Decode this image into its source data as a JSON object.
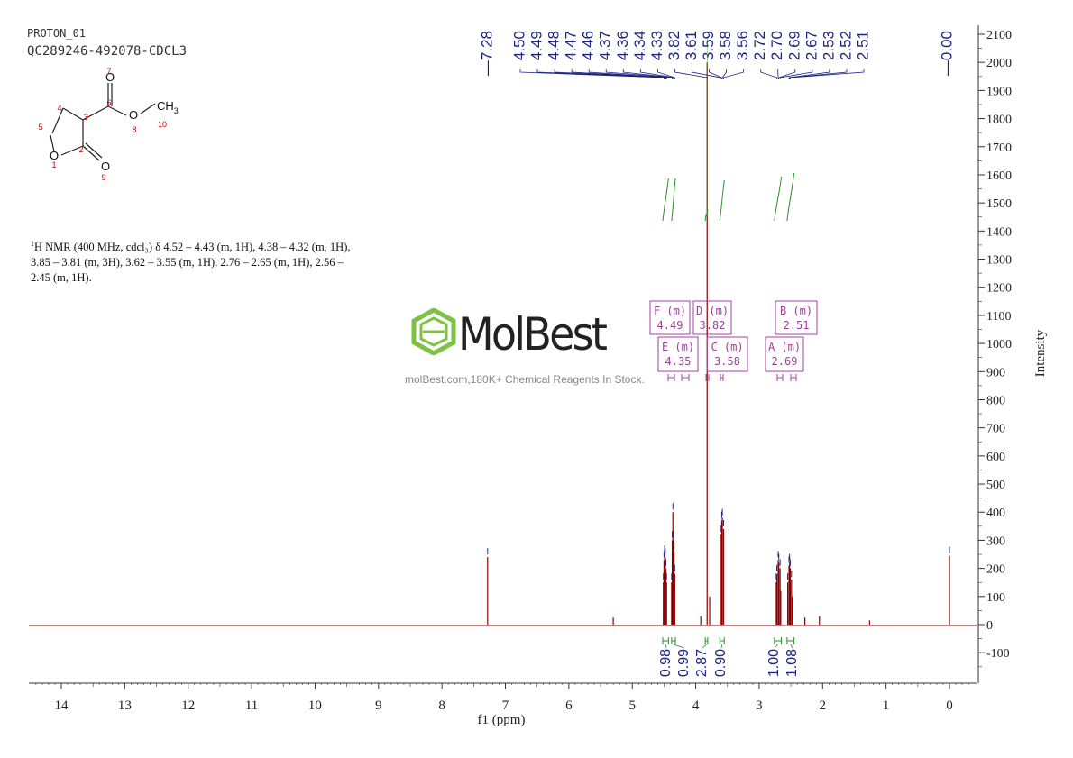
{
  "header": {
    "experiment": "PROTON_01",
    "sample": "QC289246-492078-CDCL3"
  },
  "structure": {
    "atom_labels": [
      "1",
      "2",
      "3",
      "4",
      "5",
      "6",
      "7",
      "8",
      "9",
      "10"
    ],
    "ch3_label": "CH",
    "ch3_sub": "3"
  },
  "nmr_text": {
    "sup": "1",
    "body": "H NMR (400 MHz, cdcl₃) δ 4.52 – 4.43 (m, 1H), 4.38 – 4.32 (m, 1H), 3.85 – 3.81 (m, 3H), 3.62 – 3.55 (m, 1H), 2.76 – 2.65 (m, 1H), 2.56 – 2.45 (m, 1H)."
  },
  "watermark": {
    "logo": "MolBest",
    "tagline": "molBest.com,180K+ Chemical Reagents In Stock."
  },
  "colors": {
    "spectrum": "#8b0000",
    "peak_labels": "#1a237e",
    "integrals": "#2e8b2e",
    "multiplets": "#a040a0",
    "structure_red": "#d00000",
    "axis": "#333333"
  },
  "chart_data": {
    "type": "line",
    "xlabel": "f1 (ppm)",
    "ylabel": "Intensity",
    "xlim": [
      14.5,
      -0.4
    ],
    "ylim": [
      -200,
      2130
    ],
    "x_ticks": [
      14,
      13,
      12,
      11,
      10,
      9,
      8,
      7,
      6,
      5,
      4,
      3,
      2,
      1,
      0
    ],
    "y_ticks": [
      -100,
      0,
      100,
      200,
      300,
      400,
      500,
      600,
      700,
      800,
      900,
      1000,
      1100,
      1200,
      1300,
      1400,
      1500,
      1600,
      1700,
      1800,
      1900,
      2000,
      2100
    ],
    "peaks": [
      {
        "ppm": 7.28,
        "height": 240
      },
      {
        "ppm": 5.3,
        "height": 25
      },
      {
        "ppm": 4.51,
        "height": 150
      },
      {
        "ppm": 4.5,
        "height": 230
      },
      {
        "ppm": 4.49,
        "height": 250
      },
      {
        "ppm": 4.48,
        "height": 240
      },
      {
        "ppm": 4.47,
        "height": 200
      },
      {
        "ppm": 4.46,
        "height": 150
      },
      {
        "ppm": 4.38,
        "height": 150
      },
      {
        "ppm": 4.37,
        "height": 300
      },
      {
        "ppm": 4.36,
        "height": 400
      },
      {
        "ppm": 4.35,
        "height": 300
      },
      {
        "ppm": 4.34,
        "height": 260
      },
      {
        "ppm": 4.33,
        "height": 180
      },
      {
        "ppm": 3.92,
        "height": 30
      },
      {
        "ppm": 3.82,
        "height": 2000
      },
      {
        "ppm": 3.78,
        "height": 100
      },
      {
        "ppm": 3.61,
        "height": 320
      },
      {
        "ppm": 3.59,
        "height": 370
      },
      {
        "ppm": 3.58,
        "height": 380
      },
      {
        "ppm": 3.56,
        "height": 340
      },
      {
        "ppm": 2.73,
        "height": 150
      },
      {
        "ppm": 2.72,
        "height": 180
      },
      {
        "ppm": 2.7,
        "height": 230
      },
      {
        "ppm": 2.69,
        "height": 220
      },
      {
        "ppm": 2.67,
        "height": 200
      },
      {
        "ppm": 2.66,
        "height": 120
      },
      {
        "ppm": 2.55,
        "height": 150
      },
      {
        "ppm": 2.53,
        "height": 210
      },
      {
        "ppm": 2.52,
        "height": 220
      },
      {
        "ppm": 2.51,
        "height": 200
      },
      {
        "ppm": 2.49,
        "height": 160
      },
      {
        "ppm": 2.48,
        "height": 100
      },
      {
        "ppm": 2.28,
        "height": 25
      },
      {
        "ppm": 2.05,
        "height": 30
      },
      {
        "ppm": 1.26,
        "height": 15
      },
      {
        "ppm": 0.0,
        "height": 245
      }
    ],
    "peak_labels_left": [
      "7.28"
    ],
    "peak_labels_group": [
      "4.50",
      "4.49",
      "4.48",
      "4.47",
      "4.46",
      "4.37",
      "4.36",
      "4.34",
      "4.33",
      "3.82",
      "3.61",
      "3.59",
      "3.58",
      "3.56",
      "2.72",
      "2.70",
      "2.69",
      "2.67",
      "2.53",
      "2.52",
      "2.51"
    ],
    "peak_label_group_ppm": [
      4.5,
      4.49,
      4.48,
      4.47,
      4.46,
      4.37,
      4.36,
      4.34,
      4.33,
      3.82,
      3.61,
      3.59,
      3.58,
      3.56,
      2.72,
      2.7,
      2.69,
      2.67,
      2.53,
      2.52,
      2.51
    ],
    "peak_labels_right": [
      "0.00"
    ],
    "integrals": [
      {
        "from": 4.52,
        "to": 4.43,
        "value": "0.98"
      },
      {
        "from": 4.38,
        "to": 4.32,
        "value": "0.99"
      },
      {
        "from": 3.85,
        "to": 3.81,
        "value": "2.87"
      },
      {
        "from": 3.62,
        "to": 3.55,
        "value": "0.90"
      },
      {
        "from": 2.76,
        "to": 2.65,
        "value": "1.00"
      },
      {
        "from": 2.56,
        "to": 2.45,
        "value": "1.08"
      }
    ],
    "multiplets": [
      {
        "id": "F",
        "type": "(m)",
        "shift": "4.49",
        "ppm": 4.49
      },
      {
        "id": "E",
        "type": "(m)",
        "shift": "4.35",
        "ppm": 4.35
      },
      {
        "id": "D",
        "type": "(m)",
        "shift": "3.82",
        "ppm": 3.82
      },
      {
        "id": "C",
        "type": "(m)",
        "shift": "3.58",
        "ppm": 3.58
      },
      {
        "id": "B",
        "type": "(m)",
        "shift": "2.51",
        "ppm": 2.51
      },
      {
        "id": "A",
        "type": "(m)",
        "shift": "2.69",
        "ppm": 2.69
      }
    ]
  }
}
